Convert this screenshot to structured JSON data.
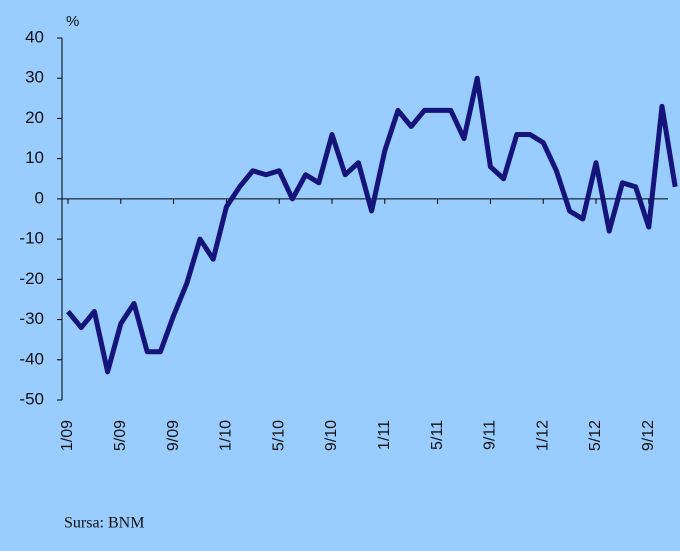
{
  "chart_data": {
    "type": "line",
    "y_unit_label": "%",
    "source": "Sursa: BNM",
    "categories": [
      "1/09",
      null,
      null,
      null,
      "5/09",
      null,
      null,
      null,
      "9/09",
      null,
      null,
      null,
      "1/10",
      null,
      null,
      null,
      "5/10",
      null,
      null,
      null,
      "9/10",
      null,
      null,
      null,
      "1/11",
      null,
      null,
      null,
      "5/11",
      null,
      null,
      null,
      "9/11",
      null,
      null,
      null,
      "1/12",
      null,
      null,
      null,
      "5/12",
      null,
      null,
      null,
      "9/12",
      null,
      null
    ],
    "series": [
      {
        "color": "#14147a",
        "values": [
          -28,
          -32,
          -28,
          -43,
          -31,
          -26,
          -38,
          -38,
          -29,
          -21,
          -10,
          -15,
          -2,
          3,
          7,
          6,
          7,
          0,
          6,
          4,
          16,
          6,
          9,
          -3,
          12,
          22,
          18,
          22,
          22,
          22,
          15,
          30,
          8,
          5,
          16,
          16,
          14,
          7,
          -3,
          -5,
          9,
          -8,
          4,
          3,
          -7,
          23,
          3
        ]
      }
    ],
    "ylim": [
      -50,
      40
    ],
    "yticks": [
      -50,
      -40,
      -30,
      -20,
      -10,
      0,
      10,
      20,
      30,
      40
    ]
  }
}
